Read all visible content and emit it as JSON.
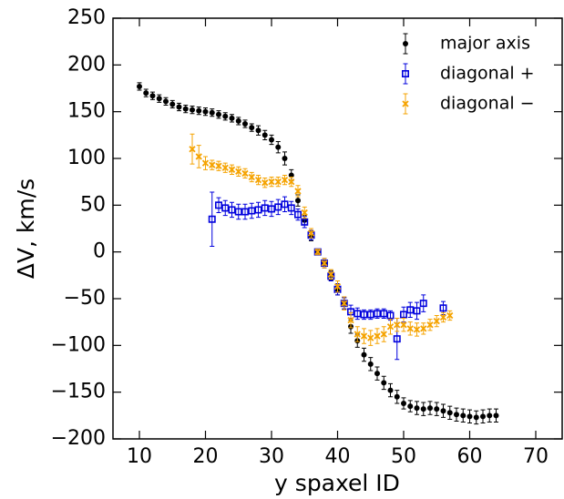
{
  "chart_data": {
    "type": "errorbar-scatter",
    "xlabel": "y spaxel ID",
    "ylabel": "ΔV, km/s",
    "xlim": [
      6,
      74
    ],
    "ylim": [
      -200,
      250
    ],
    "xticks": [
      10,
      20,
      30,
      40,
      50,
      60,
      70
    ],
    "yticks": [
      {
        "value": -200,
        "label": "−200"
      },
      {
        "value": -150,
        "label": "−150"
      },
      {
        "value": -100,
        "label": "−100"
      },
      {
        "value": -50,
        "label": "−50"
      },
      0,
      50,
      100,
      150,
      200,
      250
    ],
    "legend": "upper right",
    "series": [
      {
        "name": "major axis",
        "color": "#000000",
        "marker": "circle",
        "x": [
          10,
          11,
          12,
          13,
          14,
          15,
          16,
          17,
          18,
          19,
          20,
          21,
          22,
          23,
          24,
          25,
          26,
          27,
          28,
          29,
          30,
          31,
          32,
          33,
          34,
          35,
          36,
          37,
          38,
          39,
          40,
          41,
          42,
          43,
          44,
          45,
          46,
          47,
          48,
          49,
          50,
          51,
          52,
          53,
          54,
          55,
          56,
          57,
          58,
          59,
          60,
          61,
          62,
          63,
          64
        ],
        "values": [
          177,
          170,
          167,
          164,
          161,
          158,
          155,
          153,
          152,
          151,
          150,
          149,
          147,
          145,
          143,
          140,
          137,
          133,
          130,
          125,
          120,
          112,
          100,
          82,
          55,
          34,
          17,
          0,
          -12,
          -25,
          -40,
          -55,
          -80,
          -95,
          -110,
          -120,
          -130,
          -140,
          -148,
          -155,
          -162,
          -165,
          -167,
          -168,
          -167,
          -168,
          -170,
          -172,
          -174,
          -175,
          -176,
          -177,
          -176,
          -175,
          -175
        ],
        "errors": [
          4,
          4,
          4,
          4,
          4,
          4,
          4,
          4,
          4,
          4,
          4,
          4,
          4,
          4,
          4,
          4,
          4,
          4,
          5,
          5,
          5,
          6,
          7,
          6,
          6,
          5,
          5,
          3,
          5,
          5,
          6,
          6,
          7,
          7,
          7,
          7,
          7,
          7,
          7,
          7,
          6,
          6,
          7,
          7,
          7,
          7,
          7,
          7,
          7,
          7,
          7,
          7,
          7,
          7,
          7
        ]
      },
      {
        "name": "diagonal +",
        "color": "#0000dd",
        "marker": "square",
        "x": [
          21,
          22,
          23,
          24,
          25,
          26,
          27,
          28,
          29,
          30,
          31,
          32,
          33,
          34,
          35,
          36,
          37,
          38,
          39,
          40,
          41,
          42,
          43,
          44,
          45,
          46,
          47,
          48,
          49,
          50,
          51,
          52,
          53,
          56
        ],
        "values": [
          35,
          50,
          47,
          45,
          43,
          43,
          44,
          45,
          47,
          46,
          48,
          51,
          47,
          40,
          32,
          18,
          0,
          -12,
          -26,
          -40,
          -55,
          -64,
          -66,
          -67,
          -67,
          -66,
          -66,
          -68,
          -93,
          -67,
          -62,
          -63,
          -55,
          -60
        ],
        "errors": [
          29,
          8,
          8,
          8,
          8,
          8,
          8,
          8,
          8,
          8,
          8,
          8,
          7,
          6,
          6,
          5,
          3,
          5,
          5,
          6,
          6,
          7,
          6,
          5,
          5,
          5,
          5,
          5,
          22,
          8,
          8,
          9,
          9,
          7
        ]
      },
      {
        "name": "diagonal −",
        "color": "#f5a300",
        "marker": "x",
        "x": [
          18,
          19,
          20,
          21,
          22,
          23,
          24,
          25,
          26,
          27,
          28,
          29,
          30,
          31,
          32,
          33,
          34,
          35,
          36,
          37,
          38,
          39,
          40,
          41,
          42,
          43,
          44,
          45,
          46,
          47,
          48,
          49,
          50,
          51,
          52,
          53,
          54,
          55,
          56,
          57
        ],
        "values": [
          110,
          102,
          95,
          93,
          92,
          90,
          88,
          86,
          84,
          80,
          77,
          74,
          75,
          75,
          77,
          75,
          65,
          42,
          20,
          0,
          -12,
          -24,
          -37,
          -55,
          -73,
          -88,
          -90,
          -92,
          -90,
          -88,
          -80,
          -78,
          -78,
          -82,
          -83,
          -82,
          -78,
          -74,
          -70,
          -68
        ],
        "errors": [
          16,
          12,
          7,
          5,
          5,
          5,
          5,
          5,
          5,
          5,
          5,
          5,
          5,
          5,
          5,
          5,
          6,
          6,
          5,
          3,
          5,
          5,
          6,
          7,
          8,
          8,
          8,
          8,
          8,
          8,
          8,
          7,
          7,
          7,
          7,
          6,
          6,
          6,
          5,
          5
        ]
      }
    ]
  }
}
